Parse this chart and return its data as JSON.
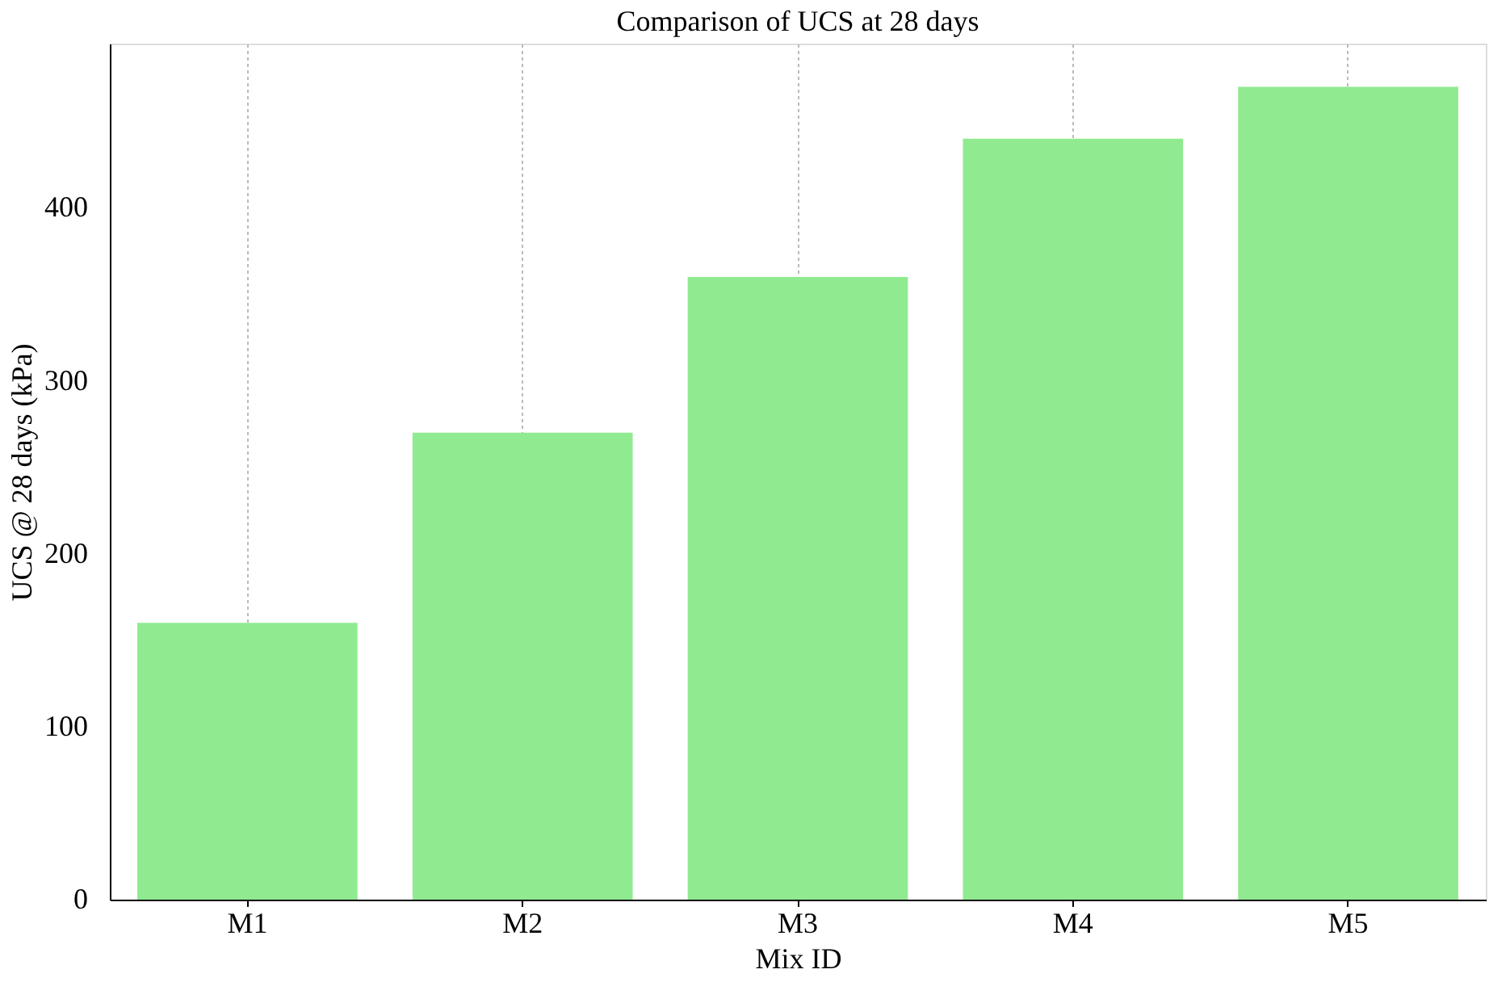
{
  "chart_data": {
    "type": "bar",
    "title": "Comparison of UCS at 28 days",
    "xlabel": "Mix ID",
    "ylabel": "UCS @ 28 days (kPa)",
    "categories": [
      "M1",
      "M2",
      "M3",
      "M4",
      "M5"
    ],
    "values": [
      160,
      270,
      360,
      440,
      470
    ],
    "color": "#90ea90",
    "ylim": [
      0,
      495
    ],
    "yticks": [
      0,
      100,
      200,
      300,
      400
    ],
    "grid": "x"
  }
}
